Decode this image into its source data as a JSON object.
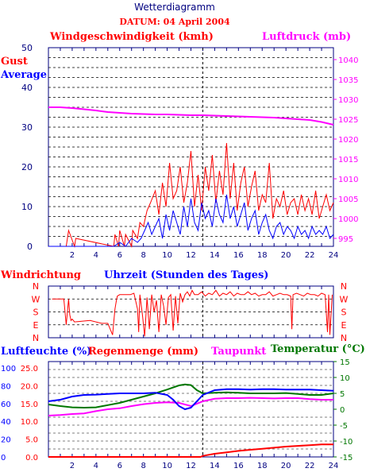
{
  "title": "Wetterdiagramm",
  "datum": "DATUM: 04 April 2004",
  "colors": {
    "red": "#ff0000",
    "blue": "#0000ff",
    "magenta": "#ff00ff",
    "green": "#007700",
    "navy": "#000080",
    "axis": "#000080"
  },
  "chart_data": [
    {
      "type": "line",
      "panel": "wind",
      "title": "Windgeschwindigkeit (kmh)",
      "right_title": "Luftdruck (mb)",
      "legend": [
        "Gust",
        "Average"
      ],
      "xlabel": "",
      "x_ticks": [
        2,
        4,
        6,
        8,
        10,
        12,
        14,
        16,
        18,
        20,
        22,
        24
      ],
      "xlim": [
        0,
        24
      ],
      "ylim": [
        0,
        50
      ],
      "y_ticks": [
        0,
        10,
        20,
        30,
        40,
        50
      ],
      "y2lim": [
        993,
        1043
      ],
      "y2_ticks": [
        995,
        1000,
        1005,
        1010,
        1015,
        1020,
        1025,
        1030,
        1035,
        1040
      ],
      "grid": true,
      "marker_x": 13,
      "series": [
        {
          "name": "Gust",
          "color": "#ff0000",
          "axis": "left",
          "x": [
            0,
            1.5,
            1.7,
            2.2,
            2.3,
            5.5,
            5.6,
            5.9,
            6.0,
            6.4,
            6.5,
            7.0,
            7.1,
            7.5,
            7.7,
            8.0,
            8.3,
            8.6,
            9.0,
            9.3,
            9.6,
            9.9,
            10.2,
            10.5,
            10.8,
            11.1,
            11.4,
            11.7,
            12.0,
            12.3,
            12.6,
            12.9,
            13.2,
            13.5,
            13.8,
            14.1,
            14.4,
            14.7,
            15.0,
            15.3,
            15.6,
            15.9,
            16.2,
            16.5,
            16.8,
            17.1,
            17.4,
            17.7,
            18.0,
            18.3,
            18.6,
            18.9,
            19.2,
            19.5,
            19.8,
            20.1,
            20.4,
            20.7,
            21.0,
            21.3,
            21.6,
            21.9,
            22.2,
            22.5,
            22.8,
            23.1,
            23.4,
            23.7,
            24
          ],
          "values": [
            0,
            0,
            4,
            0,
            2,
            0,
            3,
            0,
            4,
            0,
            3,
            0,
            4,
            2,
            6,
            5,
            9,
            11,
            14,
            8,
            16,
            10,
            21,
            12,
            14,
            20,
            11,
            16,
            24,
            10,
            18,
            9,
            20,
            14,
            23,
            11,
            19,
            13,
            26,
            12,
            21,
            9,
            16,
            20,
            10,
            15,
            19,
            9,
            13,
            11,
            21,
            7,
            12,
            10,
            14,
            8,
            11,
            12,
            8,
            13,
            9,
            12,
            8,
            14,
            7,
            10,
            13,
            9,
            11
          ]
        },
        {
          "name": "Average",
          "color": "#0000ff",
          "axis": "left",
          "x": [
            0,
            5.5,
            6.0,
            6.5,
            7.0,
            7.5,
            7.8,
            8.1,
            8.4,
            8.7,
            9.0,
            9.3,
            9.6,
            9.9,
            10.2,
            10.5,
            10.8,
            11.1,
            11.4,
            11.7,
            12.0,
            12.3,
            12.6,
            12.9,
            13.2,
            13.5,
            13.8,
            14.1,
            14.4,
            14.7,
            15.0,
            15.3,
            15.6,
            15.9,
            16.2,
            16.5,
            16.8,
            17.1,
            17.4,
            17.7,
            18.0,
            18.3,
            18.6,
            18.9,
            19.2,
            19.5,
            19.8,
            20.1,
            20.4,
            20.7,
            21.0,
            21.3,
            21.6,
            21.9,
            22.2,
            22.5,
            22.8,
            23.1,
            23.4,
            23.7,
            24
          ],
          "values": [
            0,
            0,
            1,
            0,
            2,
            1,
            2,
            4,
            6,
            3,
            5,
            7,
            2,
            8,
            4,
            9,
            6,
            3,
            10,
            5,
            12,
            6,
            4,
            11,
            7,
            9,
            5,
            12,
            8,
            6,
            13,
            7,
            10,
            5,
            8,
            11,
            4,
            7,
            9,
            3,
            6,
            8,
            4,
            2,
            5,
            6,
            3,
            5,
            4,
            2,
            5,
            3,
            4,
            2,
            5,
            3,
            4,
            3,
            5,
            2,
            3
          ]
        },
        {
          "name": "Luftdruck",
          "color": "#ff00ff",
          "axis": "right",
          "x": [
            0,
            1,
            2,
            3,
            4,
            5,
            6,
            7,
            8,
            9,
            10,
            11,
            12,
            13,
            14,
            15,
            16,
            17,
            18,
            19,
            20,
            21,
            22,
            23,
            24
          ],
          "values": [
            1028,
            1028,
            1027.8,
            1027.5,
            1027.2,
            1026.8,
            1026.6,
            1026.4,
            1026.3,
            1026.2,
            1026.2,
            1026.1,
            1026.0,
            1026.0,
            1025.9,
            1025.8,
            1025.7,
            1025.6,
            1025.5,
            1025.4,
            1025.2,
            1025.0,
            1024.8,
            1024.3,
            1023.6
          ]
        }
      ]
    },
    {
      "type": "line",
      "panel": "direction",
      "title": "Windrichtung",
      "xlabel": "Uhrzeit (Stunden des Tages)",
      "categories": [
        "N",
        "W",
        "S",
        "E",
        "N"
      ],
      "xlim": [
        0,
        24
      ],
      "ylim": [
        0,
        360
      ],
      "marker_x": 13,
      "series": [
        {
          "name": "Windrichtung",
          "color": "#ff0000",
          "x": [
            0.3,
            1.3,
            1.4,
            1.5,
            1.7,
            1.8,
            1.9,
            2.0,
            2.2,
            3.5,
            4.5,
            5.0,
            5.2,
            5.4,
            5.6,
            5.7,
            5.8,
            6.0,
            6.3,
            6.6,
            6.9,
            7.2,
            7.5,
            7.6,
            7.7,
            7.9,
            8.1,
            8.3,
            8.5,
            8.7,
            8.9,
            9.1,
            9.3,
            9.5,
            9.7,
            9.9,
            10.1,
            10.3,
            10.5,
            10.7,
            10.9,
            11.1,
            11.3,
            11.5,
            11.7,
            11.9,
            12.1,
            12.3,
            12.6,
            12.9,
            13.2,
            13.5,
            13.8,
            14.1,
            14.4,
            14.7,
            15.0,
            15.3,
            15.6,
            15.9,
            16.2,
            16.5,
            16.8,
            17.1,
            17.4,
            17.7,
            18.0,
            18.3,
            18.6,
            18.9,
            19.2,
            19.5,
            19.8,
            20.1,
            20.4,
            20.5,
            20.6,
            20.9,
            21.2,
            21.5,
            21.8,
            22.1,
            22.4,
            22.7,
            23.0,
            23.3,
            23.5,
            23.6,
            23.7,
            23.9
          ],
          "values": [
            270,
            270,
            180,
            90,
            270,
            160,
            120,
            130,
            110,
            120,
            100,
            100,
            60,
            20,
            200,
            250,
            290,
            300,
            300,
            300,
            300,
            310,
            200,
            40,
            300,
            170,
            10,
            280,
            60,
            300,
            180,
            260,
            40,
            300,
            220,
            90,
            280,
            300,
            50,
            290,
            100,
            310,
            250,
            300,
            320,
            290,
            330,
            300,
            300,
            320,
            290,
            310,
            300,
            330,
            290,
            310,
            300,
            320,
            290,
            310,
            300,
            300,
            320,
            300,
            310,
            290,
            300,
            300,
            320,
            290,
            300,
            310,
            300,
            300,
            290,
            60,
            300,
            310,
            300,
            290,
            310,
            300,
            300,
            290,
            310,
            300,
            40,
            300,
            20,
            300
          ]
        }
      ]
    },
    {
      "type": "line",
      "panel": "humidity",
      "titles": [
        "Luftfeuchte (%)",
        "Regenmenge (mm)",
        "Taupunkt",
        "Temperatur (°C)"
      ],
      "xlim": [
        0,
        24
      ],
      "x_ticks": [
        2,
        4,
        6,
        8,
        10,
        12,
        14,
        16,
        18,
        20,
        22,
        24
      ],
      "humidity_ticks": [
        0,
        20,
        40,
        60,
        80,
        100
      ],
      "rain_ticks": [
        "0.0",
        "5.0",
        "10.0",
        "15.0",
        "20.0",
        "25.0"
      ],
      "temp_ticks": [
        -15,
        -10,
        -5,
        0,
        5,
        10,
        15
      ],
      "ylim_temp": [
        -15,
        15
      ],
      "marker_x": 13,
      "series": [
        {
          "name": "Luftfeuchte",
          "color": "#0000ff",
          "unit": "temp-scale",
          "x": [
            0,
            1,
            2,
            3,
            4,
            5,
            6,
            7,
            8,
            9,
            10,
            10.5,
            11,
            11.5,
            12,
            12.5,
            13,
            14,
            15,
            16,
            17,
            18,
            19,
            20,
            21,
            22,
            23,
            24
          ],
          "values": [
            2.5,
            3.0,
            4.0,
            4.5,
            4.6,
            4.8,
            5.0,
            5.0,
            5.0,
            5.2,
            4.5,
            3.0,
            1.0,
            0.0,
            0.5,
            2.5,
            4.5,
            6.0,
            6.3,
            6.3,
            6.2,
            6.3,
            6.3,
            6.2,
            6.2,
            6.2,
            6.0,
            5.8
          ]
        },
        {
          "name": "Temperatur",
          "color": "#007700",
          "unit": "temp-scale",
          "x": [
            0,
            1,
            2,
            3,
            4,
            5,
            6,
            7,
            8,
            9,
            10,
            11,
            11.5,
            12,
            12.5,
            13,
            14,
            15,
            16,
            17,
            18,
            19,
            20,
            21,
            22,
            23,
            24
          ],
          "values": [
            1.5,
            1.0,
            0.6,
            0.5,
            0.6,
            1.3,
            2.0,
            3.0,
            4.0,
            5.0,
            6.2,
            7.5,
            7.8,
            7.6,
            6.0,
            5.0,
            5.2,
            5.3,
            5.2,
            5.0,
            5.0,
            5.0,
            5.1,
            4.8,
            4.5,
            4.5,
            5.0
          ]
        },
        {
          "name": "Taupunkt",
          "color": "#ff00ff",
          "unit": "temp-scale",
          "x": [
            0,
            1,
            2,
            3,
            4,
            5,
            6,
            7,
            8,
            9,
            10,
            11,
            12,
            13,
            14,
            15,
            16,
            17,
            18,
            19,
            20,
            21,
            22,
            23,
            24
          ],
          "values": [
            -2.0,
            -1.8,
            -1.5,
            -1.3,
            -0.6,
            0.0,
            0.3,
            1.0,
            1.6,
            2.0,
            2.2,
            2.0,
            1.0,
            2.5,
            3.3,
            3.5,
            3.5,
            3.6,
            3.5,
            3.4,
            3.5,
            3.5,
            3.2,
            3.0,
            3.0
          ]
        },
        {
          "name": "Regenmenge",
          "color": "#ff0000",
          "unit": "mm",
          "x": [
            0,
            12.8,
            13.0,
            13.5,
            14.0,
            15.0,
            16.0,
            17.0,
            18.0,
            19.0,
            20.0,
            21.0,
            22.0,
            23.0,
            24
          ],
          "values": [
            0,
            0,
            0.3,
            0.6,
            0.9,
            1.3,
            1.7,
            2.0,
            2.3,
            2.6,
            2.9,
            3.1,
            3.3,
            3.5,
            3.5
          ]
        }
      ]
    }
  ]
}
